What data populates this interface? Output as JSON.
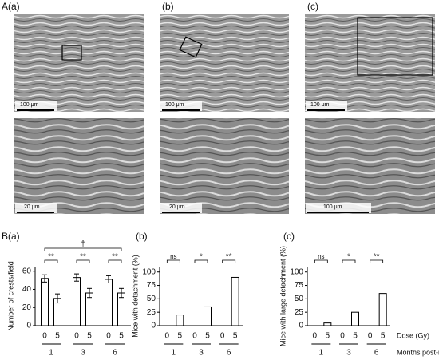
{
  "panels": {
    "labels": [
      "A(a)",
      "(b)",
      "(c)"
    ],
    "scale_bars": [
      "100 μm",
      "100 μm",
      "100 μm",
      "20 μm",
      "20 μm",
      "100 μm"
    ]
  },
  "chart_data": [
    {
      "type": "bar",
      "title": "B(a)",
      "ylabel": "Number of crests/field",
      "categories": [
        "0",
        "5",
        "0",
        "5",
        "0",
        "5"
      ],
      "groups": [
        "1",
        "3",
        "6"
      ],
      "values": [
        52,
        30,
        53,
        36,
        51,
        36
      ],
      "errors": [
        4,
        5,
        4,
        5,
        4,
        5
      ],
      "ylim": [
        0,
        65
      ],
      "yticks": [
        0,
        20,
        40,
        60
      ],
      "color": "#ffffff",
      "edgecolor": "#000000",
      "significance": [
        "**",
        "**",
        "**"
      ],
      "trend": "†"
    },
    {
      "type": "bar",
      "title": "(b)",
      "ylabel": "Mice with detachment (%)",
      "categories": [
        "0",
        "5",
        "0",
        "5",
        "0",
        "5"
      ],
      "groups": [
        "1",
        "3",
        "6"
      ],
      "values": [
        0,
        20,
        0,
        35,
        0,
        90
      ],
      "ylim": [
        0,
        110
      ],
      "yticks": [
        0,
        25,
        50,
        75,
        100
      ],
      "color": "#ffffff",
      "edgecolor": "#000000",
      "significance": [
        "ns",
        "*",
        "**"
      ]
    },
    {
      "type": "bar",
      "title": "(c)",
      "ylabel": "Mice with large detachment (%)",
      "categories": [
        "0",
        "5",
        "0",
        "5",
        "0",
        "5"
      ],
      "groups": [
        "1",
        "3",
        "6"
      ],
      "values": [
        0,
        5,
        0,
        25,
        0,
        60
      ],
      "ylim": [
        0,
        110
      ],
      "yticks": [
        0,
        25,
        50,
        75,
        100
      ],
      "color": "#ffffff",
      "edgecolor": "#000000",
      "significance": [
        "ns",
        "*",
        "**"
      ],
      "xlabel_dose": "Dose (Gy)",
      "xlabel_group": "Months post-irradiation"
    }
  ]
}
